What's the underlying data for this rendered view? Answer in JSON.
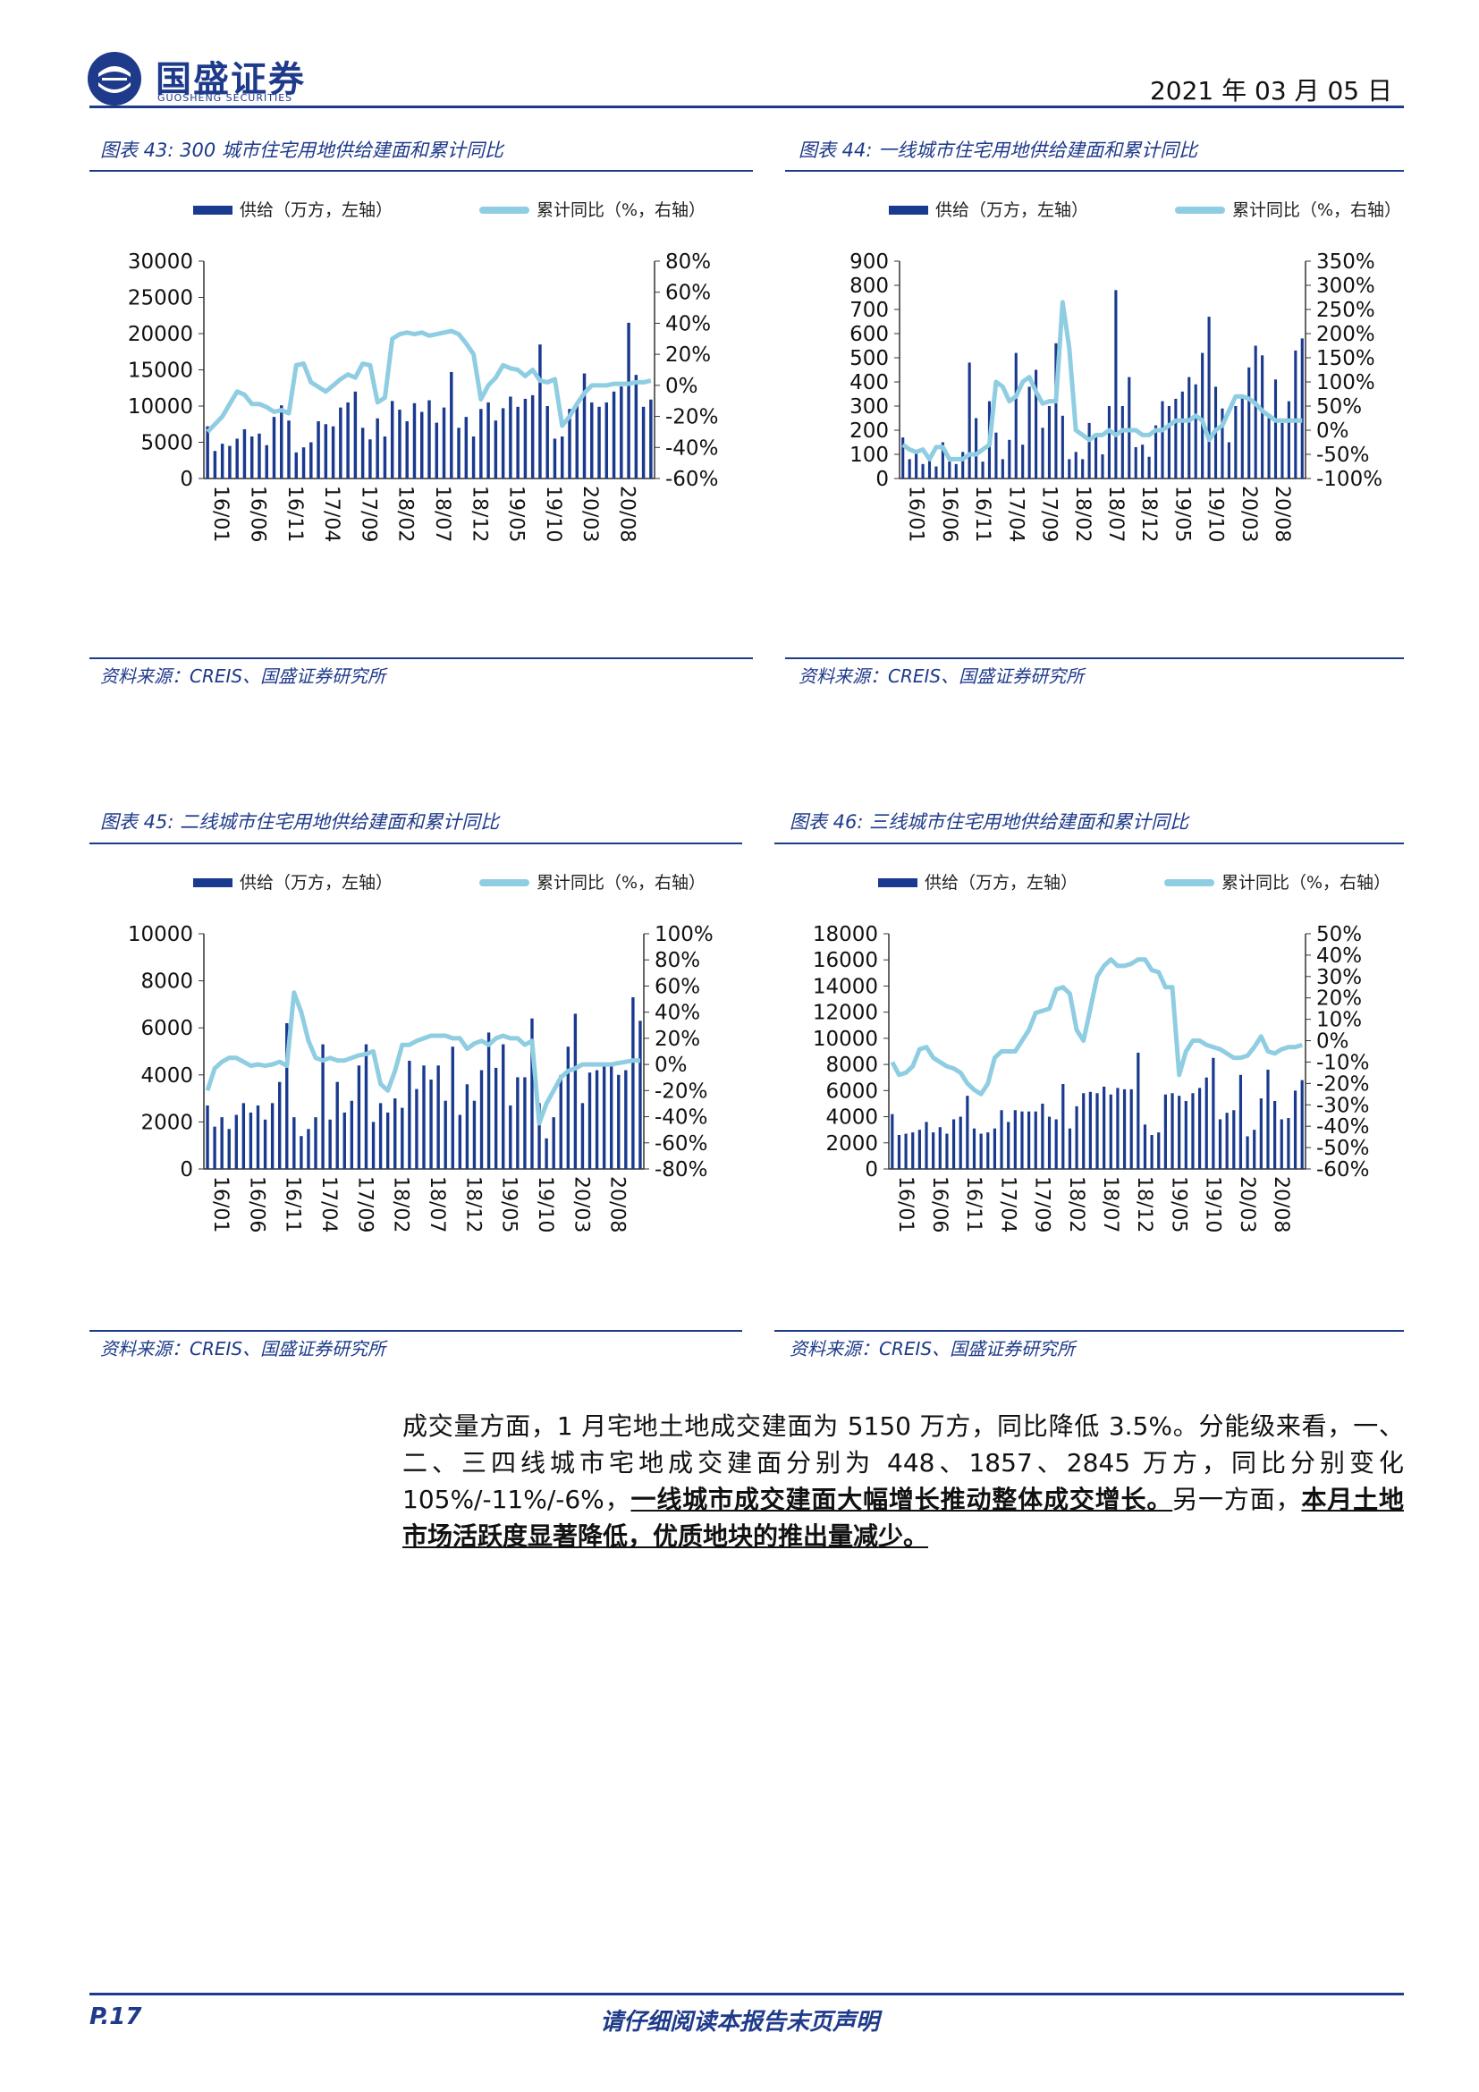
{
  "header": {
    "brand_cn": "国盛证券",
    "brand_en": "GUOSHENG SECURITIES",
    "date": "2021 年 03 月 05 日"
  },
  "figures": [
    {
      "title": "图表 43: 300 城市住宅用地供给建面和累计同比",
      "source": "资料来源：CREIS、国盛证券研究所",
      "legend_bar": "供给（万方，左轴）",
      "legend_line": "累计同比（%，右轴）",
      "left_ticks": [
        "30000",
        "25000",
        "20000",
        "15000",
        "10000",
        "5000",
        "0"
      ],
      "right_ticks": [
        "80%",
        "60%",
        "40%",
        "20%",
        "0%",
        "-20%",
        "-40%",
        "-60%"
      ],
      "x_ticks": [
        "16/01",
        "16/06",
        "16/11",
        "17/04",
        "17/09",
        "18/02",
        "18/07",
        "18/12",
        "19/05",
        "19/10",
        "20/03",
        "20/08"
      ]
    },
    {
      "title": "图表 44: 一线城市住宅用地供给建面和累计同比",
      "source": "资料来源：CREIS、国盛证券研究所",
      "legend_bar": "供给（万方，左轴）",
      "legend_line": "累计同比（%，右轴）",
      "left_ticks": [
        "900",
        "800",
        "700",
        "600",
        "500",
        "400",
        "300",
        "200",
        "100",
        "0"
      ],
      "right_ticks": [
        "350%",
        "300%",
        "250%",
        "200%",
        "150%",
        "100%",
        "50%",
        "0%",
        "-50%",
        "-100%"
      ],
      "x_ticks": [
        "16/01",
        "16/06",
        "16/11",
        "17/04",
        "17/09",
        "18/02",
        "18/07",
        "18/12",
        "19/05",
        "19/10",
        "20/03",
        "20/08"
      ]
    },
    {
      "title": "图表 45: 二线城市住宅用地供给建面和累计同比",
      "source": "资料来源：CREIS、国盛证券研究所",
      "legend_bar": "供给（万方，左轴）",
      "legend_line": "累计同比（%，右轴）",
      "left_ticks": [
        "10000",
        "8000",
        "6000",
        "4000",
        "2000",
        "0"
      ],
      "right_ticks": [
        "100%",
        "80%",
        "60%",
        "40%",
        "20%",
        "0%",
        "-20%",
        "-40%",
        "-60%",
        "-80%"
      ],
      "x_ticks": [
        "16/01",
        "16/06",
        "16/11",
        "17/04",
        "17/09",
        "18/02",
        "18/07",
        "18/12",
        "19/05",
        "19/10",
        "20/03",
        "20/08"
      ]
    },
    {
      "title": "图表 46: 三线城市住宅用地供给建面和累计同比",
      "source": "资料来源：CREIS、国盛证券研究所",
      "legend_bar": "供给（万方，左轴）",
      "legend_line": "累计同比（%，右轴）",
      "left_ticks": [
        "18000",
        "16000",
        "14000",
        "12000",
        "10000",
        "8000",
        "6000",
        "4000",
        "2000",
        "0"
      ],
      "right_ticks": [
        "50%",
        "40%",
        "30%",
        "20%",
        "10%",
        "0%",
        "-10%",
        "-20%",
        "-30%",
        "-40%",
        "-50%",
        "-60%"
      ],
      "x_ticks": [
        "16/01",
        "16/06",
        "16/11",
        "17/04",
        "17/09",
        "18/02",
        "18/07",
        "18/12",
        "19/05",
        "19/10",
        "20/03",
        "20/08"
      ]
    }
  ],
  "chart_data": [
    {
      "type": "bar",
      "x": [
        "16/01",
        "16/02",
        "16/03",
        "16/04",
        "16/05",
        "16/06",
        "16/07",
        "16/08",
        "16/09",
        "16/10",
        "16/11",
        "16/12",
        "17/01",
        "17/02",
        "17/03",
        "17/04",
        "17/05",
        "17/06",
        "17/07",
        "17/08",
        "17/09",
        "17/10",
        "17/11",
        "17/12",
        "18/01",
        "18/02",
        "18/03",
        "18/04",
        "18/05",
        "18/06",
        "18/07",
        "18/08",
        "18/09",
        "18/10",
        "18/11",
        "18/12",
        "19/01",
        "19/02",
        "19/03",
        "19/04",
        "19/05",
        "19/06",
        "19/07",
        "19/08",
        "19/09",
        "19/10",
        "19/11",
        "19/12",
        "20/01",
        "20/02",
        "20/03",
        "20/04",
        "20/05",
        "20/06",
        "20/07",
        "20/08",
        "20/09",
        "20/10",
        "20/11",
        "20/12",
        "21/01"
      ],
      "ylim": [
        0,
        30000
      ],
      "y2lim": [
        -60,
        80
      ],
      "series": [
        {
          "name": "供给（万方，左轴）",
          "axis": "left",
          "values": [
            7200,
            3800,
            4800,
            4500,
            5500,
            6800,
            5800,
            6200,
            4600,
            8500,
            10100,
            8000,
            3600,
            4300,
            5000,
            7900,
            7500,
            7200,
            9800,
            10500,
            12000,
            7000,
            5400,
            8300,
            5800,
            10700,
            9500,
            7900,
            10400,
            9200,
            10800,
            7700,
            9800,
            14700,
            7000,
            8500,
            5800,
            9600,
            10500,
            8000,
            9700,
            11300,
            9900,
            11000,
            11500,
            18500,
            10000,
            5500,
            5800,
            9600,
            10300,
            14500,
            10500,
            9900,
            10500,
            12000,
            12700,
            21500,
            14300,
            9900,
            10900
          ]
        },
        {
          "name": "累计同比（%，右轴）",
          "axis": "right",
          "values": [
            -30,
            -25,
            -20,
            -12,
            -4,
            -6,
            -12,
            -12,
            -14,
            -17,
            -16,
            -18,
            13,
            14,
            2,
            -1,
            -4,
            0,
            4,
            7,
            5,
            14,
            13,
            -11,
            -8,
            30,
            33,
            34,
            33,
            34,
            32,
            33,
            34,
            35,
            33,
            27,
            20,
            -9,
            0,
            5,
            13,
            11,
            10,
            6,
            10,
            3,
            2,
            4,
            -26,
            -20,
            -12,
            -5,
            0,
            0,
            0,
            1,
            1,
            1,
            2,
            2,
            3
          ]
        }
      ]
    },
    {
      "type": "bar",
      "x": [
        "16/01",
        "16/02",
        "16/03",
        "16/04",
        "16/05",
        "16/06",
        "16/07",
        "16/08",
        "16/09",
        "16/10",
        "16/11",
        "16/12",
        "17/01",
        "17/02",
        "17/03",
        "17/04",
        "17/05",
        "17/06",
        "17/07",
        "17/08",
        "17/09",
        "17/10",
        "17/11",
        "17/12",
        "18/01",
        "18/02",
        "18/03",
        "18/04",
        "18/05",
        "18/06",
        "18/07",
        "18/08",
        "18/09",
        "18/10",
        "18/11",
        "18/12",
        "19/01",
        "19/02",
        "19/03",
        "19/04",
        "19/05",
        "19/06",
        "19/07",
        "19/08",
        "19/09",
        "19/10",
        "19/11",
        "19/12",
        "20/01",
        "20/02",
        "20/03",
        "20/04",
        "20/05",
        "20/06",
        "20/07",
        "20/08",
        "20/09",
        "20/10",
        "20/11",
        "20/12",
        "21/01"
      ],
      "ylim": [
        0,
        900
      ],
      "y2lim": [
        -100,
        350
      ],
      "series": [
        {
          "name": "供给（万方，左轴）",
          "axis": "left",
          "values": [
            170,
            80,
            110,
            60,
            90,
            50,
            150,
            70,
            60,
            110,
            480,
            250,
            70,
            320,
            190,
            80,
            160,
            520,
            140,
            380,
            450,
            210,
            300,
            560,
            260,
            80,
            110,
            80,
            230,
            180,
            100,
            300,
            780,
            300,
            420,
            130,
            140,
            90,
            220,
            320,
            300,
            330,
            360,
            420,
            390,
            520,
            670,
            380,
            290,
            150,
            300,
            340,
            460,
            550,
            510,
            250,
            410,
            230,
            320,
            530,
            580
          ]
        },
        {
          "name": "累计同比（%，右轴）",
          "axis": "right",
          "values": [
            -30,
            -40,
            -45,
            -40,
            -60,
            -35,
            -35,
            -60,
            -60,
            -60,
            -50,
            -50,
            -40,
            -30,
            100,
            90,
            60,
            70,
            100,
            110,
            80,
            55,
            60,
            60,
            265,
            170,
            0,
            -10,
            -20,
            -10,
            -10,
            0,
            -10,
            0,
            0,
            0,
            -10,
            -10,
            0,
            0,
            10,
            20,
            20,
            20,
            30,
            20,
            -20,
            0,
            10,
            40,
            70,
            70,
            65,
            55,
            40,
            30,
            20,
            20,
            20,
            20,
            20
          ]
        }
      ]
    },
    {
      "type": "bar",
      "x": [
        "16/01",
        "16/02",
        "16/03",
        "16/04",
        "16/05",
        "16/06",
        "16/07",
        "16/08",
        "16/09",
        "16/10",
        "16/11",
        "16/12",
        "17/01",
        "17/02",
        "17/03",
        "17/04",
        "17/05",
        "17/06",
        "17/07",
        "17/08",
        "17/09",
        "17/10",
        "17/11",
        "17/12",
        "18/01",
        "18/02",
        "18/03",
        "18/04",
        "18/05",
        "18/06",
        "18/07",
        "18/08",
        "18/09",
        "18/10",
        "18/11",
        "18/12",
        "19/01",
        "19/02",
        "19/03",
        "19/04",
        "19/05",
        "19/06",
        "19/07",
        "19/08",
        "19/09",
        "19/10",
        "19/11",
        "19/12",
        "20/01",
        "20/02",
        "20/03",
        "20/04",
        "20/05",
        "20/06",
        "20/07",
        "20/08",
        "20/09",
        "20/10",
        "20/11",
        "20/12",
        "21/01"
      ],
      "ylim": [
        0,
        10000
      ],
      "y2lim": [
        -80,
        100
      ],
      "series": [
        {
          "name": "供给（万方，左轴）",
          "axis": "left",
          "values": [
            2700,
            1800,
            2200,
            1700,
            2300,
            2800,
            2400,
            2700,
            2100,
            2800,
            3700,
            6200,
            2200,
            1400,
            1700,
            2200,
            5300,
            2100,
            3700,
            2400,
            2900,
            4400,
            5300,
            2000,
            2800,
            2400,
            3000,
            2600,
            4600,
            3400,
            4400,
            3800,
            4400,
            2900,
            5200,
            2300,
            3600,
            2900,
            4200,
            5800,
            4300,
            5300,
            2700,
            3900,
            3900,
            6400,
            2800,
            1300,
            2200,
            4000,
            5200,
            6600,
            2800,
            4100,
            4200,
            4400,
            4400,
            4000,
            4200,
            7300,
            6300
          ]
        },
        {
          "name": "累计同比（%，右轴）",
          "axis": "right",
          "values": [
            -20,
            -3,
            2,
            5,
            5,
            2,
            -1,
            0,
            -1,
            0,
            2,
            -1,
            55,
            40,
            18,
            5,
            3,
            5,
            3,
            3,
            5,
            7,
            8,
            10,
            -15,
            -20,
            -5,
            15,
            15,
            18,
            20,
            22,
            22,
            22,
            20,
            20,
            12,
            16,
            18,
            15,
            20,
            22,
            20,
            20,
            15,
            18,
            -45,
            -30,
            -20,
            -10,
            -5,
            -3,
            0,
            0,
            0,
            0,
            0,
            1,
            2,
            3,
            3
          ]
        }
      ]
    },
    {
      "type": "bar",
      "x": [
        "16/01",
        "16/02",
        "16/03",
        "16/04",
        "16/05",
        "16/06",
        "16/07",
        "16/08",
        "16/09",
        "16/10",
        "16/11",
        "16/12",
        "17/01",
        "17/02",
        "17/03",
        "17/04",
        "17/05",
        "17/06",
        "17/07",
        "17/08",
        "17/09",
        "17/10",
        "17/11",
        "17/12",
        "18/01",
        "18/02",
        "18/03",
        "18/04",
        "18/05",
        "18/06",
        "18/07",
        "18/08",
        "18/09",
        "18/10",
        "18/11",
        "18/12",
        "19/01",
        "19/02",
        "19/03",
        "19/04",
        "19/05",
        "19/06",
        "19/07",
        "19/08",
        "19/09",
        "19/10",
        "19/11",
        "19/12",
        "20/01",
        "20/02",
        "20/03",
        "20/04",
        "20/05",
        "20/06",
        "20/07",
        "20/08",
        "20/09",
        "20/10",
        "20/11",
        "20/12",
        "21/01"
      ],
      "ylim": [
        0,
        18000
      ],
      "y2lim": [
        -60,
        50
      ],
      "series": [
        {
          "name": "供给（万方，左轴）",
          "axis": "left",
          "values": [
            4200,
            2600,
            2700,
            2800,
            3000,
            3600,
            2800,
            3200,
            2700,
            3800,
            4000,
            5600,
            3100,
            2700,
            2800,
            3100,
            4500,
            3600,
            4500,
            4400,
            4400,
            4400,
            5000,
            4000,
            3800,
            6500,
            3100,
            4800,
            5800,
            5900,
            5800,
            6300,
            5700,
            6200,
            6100,
            6100,
            8900,
            3400,
            2600,
            2800,
            5700,
            5800,
            5600,
            5200,
            5800,
            6200,
            7000,
            8500,
            3800,
            4300,
            4500,
            7200,
            2500,
            3000,
            5400,
            7600,
            5200,
            3800,
            3900,
            6000,
            6800
          ]
        },
        {
          "name": "累计同比（%，右轴）",
          "axis": "right",
          "values": [
            -10,
            -16,
            -15,
            -12,
            -4,
            -3,
            -8,
            -10,
            -12,
            -13,
            -15,
            -20,
            -23,
            -25,
            -20,
            -8,
            -5,
            -5,
            -5,
            0,
            5,
            13,
            14,
            15,
            24,
            25,
            22,
            5,
            0,
            15,
            30,
            35,
            38,
            35,
            35,
            36,
            38,
            38,
            33,
            32,
            25,
            25,
            -16,
            -5,
            0,
            0,
            -2,
            -3,
            -4,
            -6,
            -8,
            -8,
            -7,
            -3,
            2,
            -5,
            -6,
            -4,
            -3,
            -3,
            -2
          ]
        }
      ]
    }
  ],
  "body": {
    "p1_a": "成交量方面，1 月宅地土地成交建面为 5150 万方，同比降低 3.5%。分能级来看，一、二、三四线城市宅地成交建面分别为 448、1857、2845 万方，同比分别变化 105%/-11%/-6%，",
    "p1_b": "一线城市成交建面大幅增长推动整体成交增长。",
    "p1_c": "另一方面，",
    "p1_d": "本月土地市场活跃度显著降低，优质地块的推出量减少。"
  },
  "footer": {
    "page": "P.17",
    "disclaimer": "请仔细阅读本报告末页声明"
  },
  "colors": {
    "brand": "#1e3a8a",
    "bar": "#1a3a8f",
    "line": "#8fcde2"
  }
}
